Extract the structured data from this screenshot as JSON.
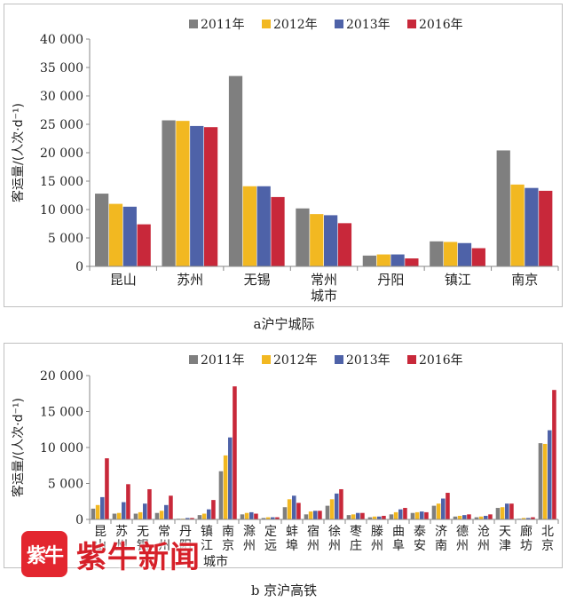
{
  "colors": {
    "2011年": "#7f7f7f",
    "2012年": "#f2b821",
    "2013年": "#4e62a8",
    "2016年": "#c8283a"
  },
  "captions": {
    "a": "a沪宁城际",
    "b": "b 京沪高铁"
  },
  "watermark": {
    "logo": "紫牛",
    "text": "紫牛新闻"
  },
  "chart_data": [
    {
      "type": "bar",
      "ylabel": "客运量/(人次·d⁻¹)",
      "ylim": [
        0,
        40000
      ],
      "yticks": [
        "0",
        "5 000",
        "10 000",
        "15 000",
        "20 000",
        "25 000",
        "30 000",
        "35 000",
        "40 000"
      ],
      "legend": [
        "2011年",
        "2012年",
        "2013年",
        "2016年"
      ],
      "legend_position": "top",
      "categories": [
        "昆山",
        "苏州",
        "无锡",
        "常州城市",
        "丹阳",
        "镇江",
        "南京"
      ],
      "category_labels": [
        [
          "昆山"
        ],
        [
          "苏州"
        ],
        [
          "无锡"
        ],
        [
          "常州",
          "城市"
        ],
        [
          "丹阳"
        ],
        [
          "镇江"
        ],
        [
          "南京"
        ]
      ],
      "series": [
        {
          "name": "2011年",
          "values": [
            12800,
            25700,
            33500,
            10200,
            1900,
            4400,
            20400
          ]
        },
        {
          "name": "2012年",
          "values": [
            11000,
            25600,
            14100,
            9200,
            2100,
            4300,
            14400
          ]
        },
        {
          "name": "2013年",
          "values": [
            10500,
            24700,
            14100,
            9000,
            2100,
            4100,
            13800
          ]
        },
        {
          "name": "2016年",
          "values": [
            7400,
            24500,
            12200,
            7600,
            1400,
            3200,
            13300
          ]
        }
      ]
    },
    {
      "type": "bar",
      "ylabel": "客运量/(人次·d⁻¹)",
      "ylim": [
        0,
        20000
      ],
      "yticks": [
        "0",
        "5 000",
        "10 000",
        "15 000",
        "20 000"
      ],
      "legend": [
        "2011年",
        "2012年",
        "2013年",
        "2016年"
      ],
      "legend_position": "top",
      "categories": [
        "昆山",
        "苏州",
        "无锡",
        "常州",
        "丹阳",
        "镇江",
        "南京",
        "滁州",
        "定远",
        "蚌埠",
        "宿州",
        "徐州",
        "枣庄",
        "滕州",
        "曲阜",
        "泰安",
        "济南",
        "德州",
        "沧州",
        "天津",
        "廊坊",
        "北京"
      ],
      "category_labels": [
        [
          "昆山"
        ],
        [
          "苏州"
        ],
        [
          "无锡"
        ],
        [
          "常州"
        ],
        [
          "丹阳"
        ],
        [
          "镇江"
        ],
        [
          "南京"
        ],
        [
          "滁州"
        ],
        [
          "定远"
        ],
        [
          "蚌埠"
        ],
        [
          "宿州"
        ],
        [
          "徐州"
        ],
        [
          "枣庄"
        ],
        [
          "滕州"
        ],
        [
          "曲阜"
        ],
        [
          "泰安"
        ],
        [
          "济南"
        ],
        [
          "德州"
        ],
        [
          "沧州"
        ],
        [
          "天津"
        ],
        [
          "廊坊"
        ],
        [
          "北京"
        ]
      ],
      "group_label": "城市",
      "series": [
        {
          "name": "2011年",
          "values": [
            1500,
            800,
            800,
            900,
            100,
            600,
            6700,
            700,
            200,
            1700,
            700,
            1900,
            600,
            300,
            700,
            900,
            1900,
            400,
            300,
            1600,
            100,
            10600
          ]
        },
        {
          "name": "2012年",
          "values": [
            2000,
            900,
            1000,
            1200,
            100,
            800,
            8900,
            900,
            300,
            2800,
            1100,
            2800,
            700,
            400,
            1000,
            1000,
            2200,
            500,
            400,
            1700,
            200,
            10500
          ]
        },
        {
          "name": "2013年",
          "values": [
            3100,
            2400,
            2200,
            2000,
            200,
            1400,
            11400,
            1000,
            300,
            3300,
            1200,
            3600,
            900,
            400,
            1400,
            1100,
            2900,
            600,
            500,
            2200,
            200,
            12400
          ]
        },
        {
          "name": "2016年",
          "values": [
            8500,
            4900,
            4200,
            3300,
            200,
            2700,
            18500,
            800,
            300,
            2300,
            1200,
            4200,
            900,
            500,
            1600,
            1000,
            3700,
            700,
            700,
            2200,
            300,
            18000
          ]
        }
      ]
    }
  ]
}
